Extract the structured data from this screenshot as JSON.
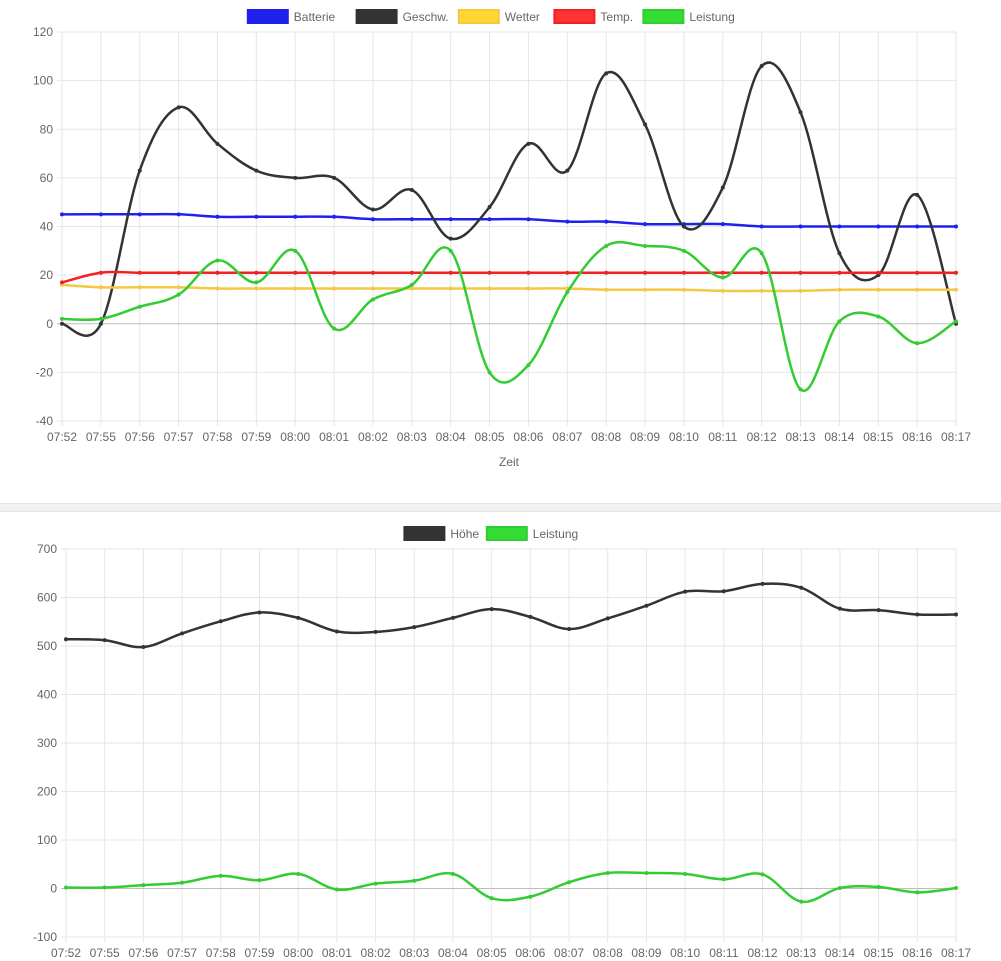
{
  "chart_data": [
    {
      "type": "line",
      "title": "",
      "xlabel": "Zeit",
      "ylabel": "",
      "ylim": [
        -40,
        120
      ],
      "yticks": [
        -40,
        -20,
        0,
        20,
        40,
        60,
        80,
        100,
        120
      ],
      "grid": true,
      "legend_position": "top",
      "categories": [
        "07:52",
        "07:55",
        "07:56",
        "07:57",
        "07:58",
        "07:59",
        "08:00",
        "08:01",
        "08:02",
        "08:03",
        "08:04",
        "08:05",
        "08:06",
        "08:07",
        "08:08",
        "08:09",
        "08:10",
        "08:11",
        "08:12",
        "08:13",
        "08:14",
        "08:15",
        "08:16",
        "08:17"
      ],
      "series": [
        {
          "name": "Batterie",
          "color": "#2020ee",
          "fill": "#2020ee",
          "values": [
            45,
            45,
            45,
            45,
            44,
            44,
            44,
            44,
            43,
            43,
            43,
            43,
            43,
            42,
            42,
            41,
            41,
            41,
            40,
            40,
            40,
            40,
            40,
            40
          ]
        },
        {
          "name": "Geschw.",
          "color": "#333333",
          "fill": "#333333",
          "values": [
            0,
            0,
            63,
            89,
            74,
            63,
            60,
            60,
            47,
            55,
            35,
            48,
            74,
            63,
            103,
            82,
            40,
            56,
            106,
            87,
            29,
            20,
            53,
            0
          ]
        },
        {
          "name": "Wetter",
          "color": "#f5c842",
          "fill": "#ffd633",
          "values": [
            16,
            15,
            15,
            15,
            14.5,
            14.5,
            14.5,
            14.5,
            14.5,
            14.5,
            14.5,
            14.5,
            14.5,
            14.5,
            14,
            14,
            14,
            13.5,
            13.5,
            13.5,
            14,
            14,
            14,
            14
          ]
        },
        {
          "name": "Temp.",
          "color": "#ee2222",
          "fill": "#ff3333",
          "values": [
            17,
            21,
            21,
            21,
            21,
            21,
            21,
            21,
            21,
            21,
            21,
            21,
            21,
            21,
            21,
            21,
            21,
            21,
            21,
            21,
            21,
            21,
            21,
            21
          ]
        },
        {
          "name": "Leistung",
          "color": "#33cc33",
          "fill": "#33dd33",
          "values": [
            2,
            2,
            7,
            12,
            26,
            17,
            30,
            -2,
            10,
            16,
            30,
            -20,
            -17,
            13,
            32,
            32,
            30,
            19,
            29,
            -27,
            1,
            3,
            -8,
            1
          ]
        }
      ]
    },
    {
      "type": "line",
      "title": "",
      "xlabel": "",
      "ylabel": "",
      "ylim": [
        -100,
        700
      ],
      "yticks": [
        -100,
        0,
        100,
        200,
        300,
        400,
        500,
        600,
        700
      ],
      "grid": true,
      "legend_position": "top",
      "categories": [
        "07:52",
        "07:55",
        "07:56",
        "07:57",
        "07:58",
        "07:59",
        "08:00",
        "08:01",
        "08:02",
        "08:03",
        "08:04",
        "08:05",
        "08:06",
        "08:07",
        "08:08",
        "08:09",
        "08:10",
        "08:11",
        "08:12",
        "08:13",
        "08:14",
        "08:15",
        "08:16",
        "08:17"
      ],
      "series": [
        {
          "name": "Höhe",
          "color": "#333333",
          "fill": "#333333",
          "values": [
            514,
            512,
            498,
            526,
            551,
            569,
            558,
            530,
            529,
            539,
            558,
            576,
            560,
            535,
            557,
            583,
            612,
            613,
            628,
            620,
            577,
            574,
            565,
            565
          ]
        },
        {
          "name": "Leistung",
          "color": "#33cc33",
          "fill": "#33dd33",
          "values": [
            2,
            2,
            7,
            12,
            26,
            17,
            30,
            -2,
            10,
            16,
            30,
            -20,
            -17,
            13,
            32,
            32,
            30,
            19,
            29,
            -27,
            1,
            3,
            -8,
            1
          ]
        }
      ]
    }
  ]
}
